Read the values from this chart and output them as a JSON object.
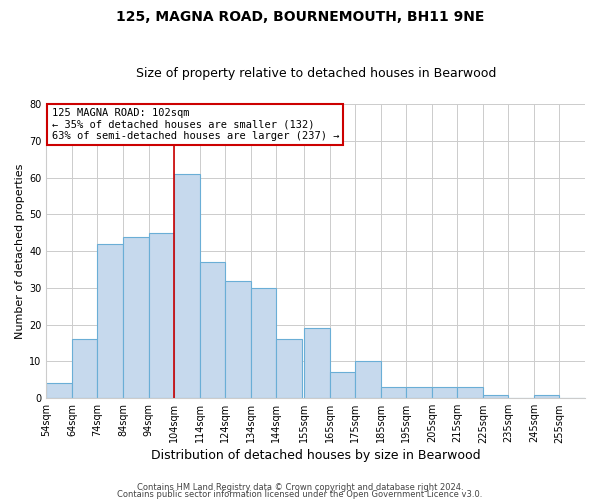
{
  "title": "125, MAGNA ROAD, BOURNEMOUTH, BH11 9NE",
  "subtitle": "Size of property relative to detached houses in Bearwood",
  "xlabel": "Distribution of detached houses by size in Bearwood",
  "ylabel": "Number of detached properties",
  "footer_line1": "Contains HM Land Registry data © Crown copyright and database right 2024.",
  "footer_line2": "Contains public sector information licensed under the Open Government Licence v3.0.",
  "bin_labels": [
    "54sqm",
    "64sqm",
    "74sqm",
    "84sqm",
    "94sqm",
    "104sqm",
    "114sqm",
    "124sqm",
    "134sqm",
    "144sqm",
    "155sqm",
    "165sqm",
    "175sqm",
    "185sqm",
    "195sqm",
    "205sqm",
    "215sqm",
    "225sqm",
    "235sqm",
    "245sqm",
    "255sqm"
  ],
  "bin_left_edges": [
    54,
    64,
    74,
    84,
    94,
    104,
    114,
    124,
    134,
    144,
    155,
    165,
    175,
    185,
    195,
    205,
    215,
    225,
    235,
    245,
    255
  ],
  "bar_heights": [
    4,
    16,
    42,
    44,
    45,
    61,
    37,
    32,
    30,
    16,
    19,
    7,
    10,
    3,
    3,
    3,
    3,
    1,
    0,
    1,
    0
  ],
  "bar_color": "#c6d9ed",
  "bar_edge_color": "#6aaed6",
  "vline_x": 104,
  "vline_color": "#cc0000",
  "annotation_line1": "125 MAGNA ROAD: 102sqm",
  "annotation_line2": "← 35% of detached houses are smaller (132)",
  "annotation_line3": "63% of semi-detached houses are larger (237) →",
  "annotation_box_color": "white",
  "annotation_box_edge_color": "#cc0000",
  "ylim": [
    0,
    80
  ],
  "yticks": [
    0,
    10,
    20,
    30,
    40,
    50,
    60,
    70,
    80
  ],
  "xlim": [
    54,
    265
  ],
  "grid_color": "#cccccc",
  "bg_color": "white",
  "bin_width": 10,
  "title_fontsize": 10,
  "subtitle_fontsize": 9,
  "ylabel_fontsize": 8,
  "xlabel_fontsize": 9,
  "tick_labelsize": 7,
  "footer_fontsize": 6
}
